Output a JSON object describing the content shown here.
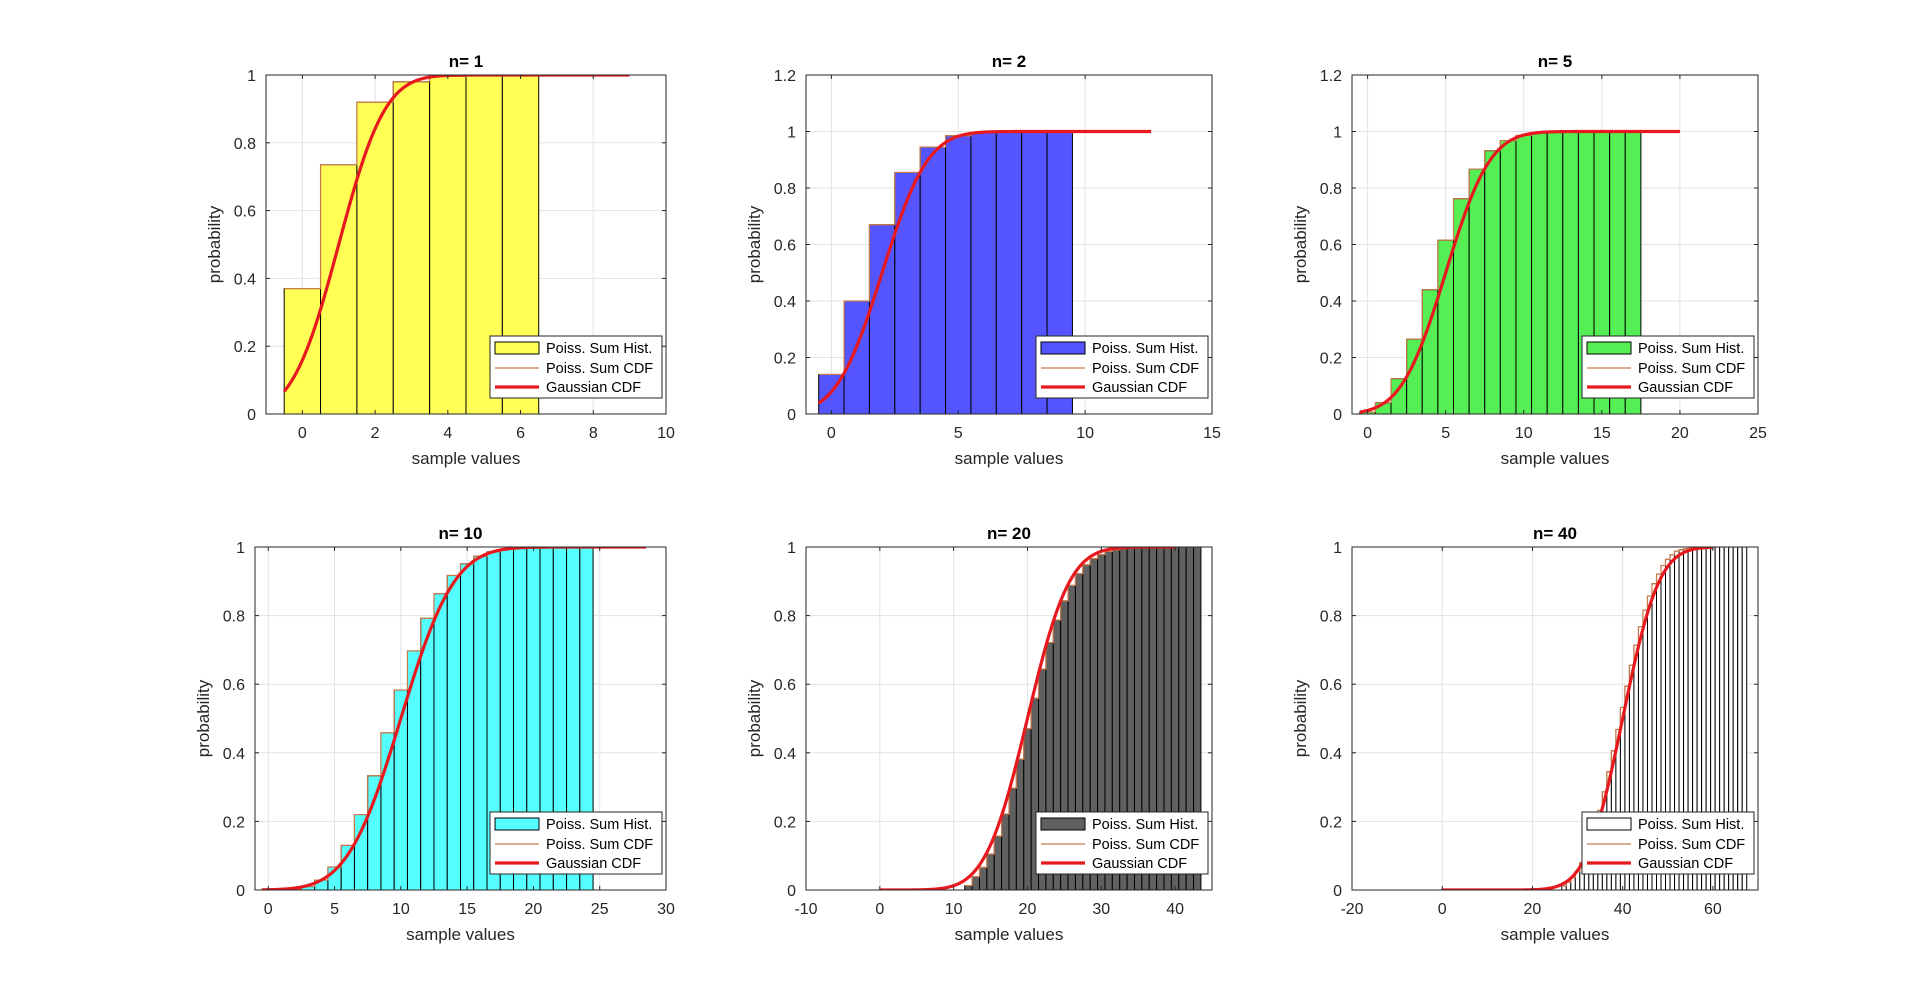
{
  "chart_data": [
    {
      "type": "bar",
      "title": "n= 1",
      "xlabel": "sample values",
      "ylabel": "probability",
      "xlim": [
        -1,
        10
      ],
      "ylim": [
        0,
        1
      ],
      "xticks": [
        0,
        2,
        4,
        6,
        8,
        10
      ],
      "yticks": [
        0,
        0.2,
        0.4,
        0.6,
        0.8,
        1
      ],
      "grid": true,
      "legend_placement": "bottom-right",
      "hist_color": "#ffff55",
      "bin_start": -0.5,
      "bin_width": 1,
      "hist_values": [
        0.37,
        0.735,
        0.92,
        0.98,
        0.996,
        1.0,
        1.0
      ],
      "cdf_values": [
        0.37,
        0.735,
        0.92,
        0.98,
        0.996,
        1.0,
        1.0
      ],
      "gauss": {
        "mean": 1,
        "sd": 1,
        "x_range": [
          -0.5,
          9
        ]
      },
      "legend": [
        "Poiss. Sum Hist.",
        "Poiss. Sum CDF",
        "Gaussian CDF"
      ]
    },
    {
      "type": "bar",
      "title": "n= 2",
      "xlabel": "sample values",
      "ylabel": "probability",
      "xlim": [
        -1,
        15
      ],
      "ylim": [
        0,
        1.2
      ],
      "xticks": [
        0,
        5,
        10,
        15
      ],
      "yticks": [
        0,
        0.2,
        0.4,
        0.6,
        0.8,
        1,
        1.2
      ],
      "grid": true,
      "legend_placement": "bottom-right",
      "hist_color": "#5555ff",
      "bin_start": -0.5,
      "bin_width": 1,
      "hist_values": [
        0.14,
        0.4,
        0.67,
        0.855,
        0.945,
        0.985,
        0.995,
        1.0,
        1.0,
        1.0
      ],
      "cdf_values": [
        0.14,
        0.4,
        0.67,
        0.855,
        0.945,
        0.985,
        0.995,
        1.0,
        1.0,
        1.0
      ],
      "gauss": {
        "mean": 2,
        "sd": 1.414,
        "x_range": [
          -0.5,
          12.6
        ]
      },
      "legend": [
        "Poiss. Sum Hist.",
        "Poiss. Sum CDF",
        "Gaussian CDF"
      ]
    },
    {
      "type": "bar",
      "title": "n= 5",
      "xlabel": "sample values",
      "ylabel": "probability",
      "xlim": [
        -1,
        25
      ],
      "ylim": [
        0,
        1.2
      ],
      "xticks": [
        0,
        5,
        10,
        15,
        20,
        25
      ],
      "yticks": [
        0,
        0.2,
        0.4,
        0.6,
        0.8,
        1,
        1.2
      ],
      "grid": true,
      "legend_placement": "bottom-right",
      "hist_color": "#55ee55",
      "bin_start": -0.5,
      "bin_width": 1,
      "hist_values": [
        0.007,
        0.04,
        0.125,
        0.265,
        0.44,
        0.615,
        0.762,
        0.867,
        0.932,
        0.968,
        0.986,
        0.995,
        0.998,
        1.0,
        1.0,
        1.0,
        1.0,
        1.0
      ],
      "cdf_values": [
        0.007,
        0.04,
        0.125,
        0.265,
        0.44,
        0.615,
        0.762,
        0.867,
        0.932,
        0.968,
        0.986,
        0.995,
        0.998,
        1.0,
        1.0,
        1.0,
        1.0,
        1.0
      ],
      "gauss": {
        "mean": 5,
        "sd": 2.236,
        "x_range": [
          -0.5,
          20
        ]
      },
      "legend": [
        "Poiss. Sum Hist.",
        "Poiss. Sum CDF",
        "Gaussian CDF"
      ]
    },
    {
      "type": "bar",
      "title": "n= 10",
      "xlabel": "sample values",
      "ylabel": "probability",
      "xlim": [
        -1,
        30
      ],
      "ylim": [
        0,
        1
      ],
      "xticks": [
        0,
        5,
        10,
        15,
        20,
        25,
        30
      ],
      "yticks": [
        0,
        0.2,
        0.4,
        0.6,
        0.8,
        1
      ],
      "grid": true,
      "legend_placement": "bottom-right",
      "hist_color": "#55ffff",
      "bin_start": -0.5,
      "bin_width": 1,
      "hist_values": [
        0,
        0,
        0.003,
        0.01,
        0.029,
        0.067,
        0.13,
        0.22,
        0.333,
        0.458,
        0.583,
        0.697,
        0.792,
        0.864,
        0.917,
        0.951,
        0.973,
        0.986,
        0.993,
        0.997,
        0.998,
        0.999,
        1.0,
        1.0,
        1.0
      ],
      "cdf_values": [
        0,
        0,
        0.003,
        0.01,
        0.029,
        0.067,
        0.13,
        0.22,
        0.333,
        0.458,
        0.583,
        0.697,
        0.792,
        0.864,
        0.917,
        0.951,
        0.973,
        0.986,
        0.993,
        0.997,
        0.998,
        0.999,
        1.0,
        1.0,
        1.0
      ],
      "gauss": {
        "mean": 10,
        "sd": 3.162,
        "x_range": [
          -0.5,
          28.5
        ]
      },
      "legend": [
        "Poiss. Sum Hist.",
        "Poiss. Sum CDF",
        "Gaussian CDF"
      ]
    },
    {
      "type": "bar",
      "title": "n= 20",
      "xlabel": "sample values",
      "ylabel": "probability",
      "xlim": [
        -10,
        45
      ],
      "ylim": [
        0,
        1
      ],
      "xticks": [
        -10,
        0,
        10,
        20,
        30,
        40
      ],
      "yticks": [
        0,
        0.2,
        0.4,
        0.6,
        0.8,
        1
      ],
      "grid": true,
      "legend_placement": "bottom-right",
      "hist_color": "#606060",
      "bin_start": 11.5,
      "bin_width": 1,
      "hist_values": [
        0.013,
        0.039,
        0.066,
        0.105,
        0.157,
        0.221,
        0.297,
        0.381,
        0.47,
        0.559,
        0.644,
        0.721,
        0.787,
        0.843,
        0.888,
        0.922,
        0.948,
        0.966,
        0.978,
        0.987,
        0.992,
        0.995,
        0.997,
        0.999,
        1.0,
        1.0,
        1.0,
        1.0,
        1.0,
        1.0,
        1.0,
        1.0
      ],
      "cdf_values": [
        0.013,
        0.039,
        0.066,
        0.105,
        0.157,
        0.221,
        0.297,
        0.381,
        0.47,
        0.559,
        0.644,
        0.721,
        0.787,
        0.843,
        0.888,
        0.922,
        0.948,
        0.966,
        0.978,
        0.987,
        0.992,
        0.995,
        0.997,
        0.999,
        1.0,
        1.0,
        1.0,
        1.0,
        1.0,
        1.0,
        1.0,
        1.0
      ],
      "gauss": {
        "mean": 20,
        "sd": 4.472,
        "x_range": [
          0,
          40
        ]
      },
      "legend": [
        "Poiss. Sum Hist.",
        "Poiss. Sum CDF",
        "Gaussian CDF"
      ]
    },
    {
      "type": "bar",
      "title": "n= 40",
      "xlabel": "sample values",
      "ylabel": "probability",
      "xlim": [
        -20,
        70
      ],
      "ylim": [
        0,
        1
      ],
      "xticks": [
        -20,
        0,
        20,
        40,
        60
      ],
      "yticks": [
        0,
        0.2,
        0.4,
        0.6,
        0.8,
        1
      ],
      "grid": true,
      "legend_placement": "bottom-right",
      "hist_color": "#ffffff",
      "bin_start": 26.5,
      "bin_width": 1,
      "hist_values": [
        0.012,
        0.023,
        0.036,
        0.054,
        0.079,
        0.107,
        0.143,
        0.184,
        0.232,
        0.286,
        0.345,
        0.406,
        0.468,
        0.532,
        0.594,
        0.655,
        0.714,
        0.768,
        0.816,
        0.857,
        0.893,
        0.921,
        0.946,
        0.964,
        0.977,
        0.988,
        0.992,
        0.995,
        0.997,
        0.998,
        0.999,
        1.0,
        1.0,
        1.0,
        1.0,
        1.0,
        1.0,
        1.0,
        1.0,
        1.0,
        1.0
      ],
      "cdf_values": [
        0.012,
        0.023,
        0.036,
        0.054,
        0.079,
        0.107,
        0.143,
        0.184,
        0.232,
        0.286,
        0.345,
        0.406,
        0.468,
        0.532,
        0.594,
        0.655,
        0.714,
        0.768,
        0.816,
        0.857,
        0.893,
        0.921,
        0.946,
        0.964,
        0.977,
        0.988,
        0.992,
        0.995,
        0.997,
        0.998,
        0.999,
        1.0,
        1.0,
        1.0,
        1.0,
        1.0,
        1.0,
        1.0,
        1.0,
        1.0,
        1.0
      ],
      "gauss": {
        "mean": 40,
        "sd": 6.325,
        "x_range": [
          0,
          60
        ]
      },
      "legend": [
        "Poiss. Sum Hist.",
        "Poiss. Sum CDF",
        "Gaussian CDF"
      ]
    }
  ],
  "colors": {
    "cdf_line": "#c87a4a",
    "gauss_line": "#e8191e",
    "grid": "#e3e3e3",
    "axis": "#262626"
  }
}
